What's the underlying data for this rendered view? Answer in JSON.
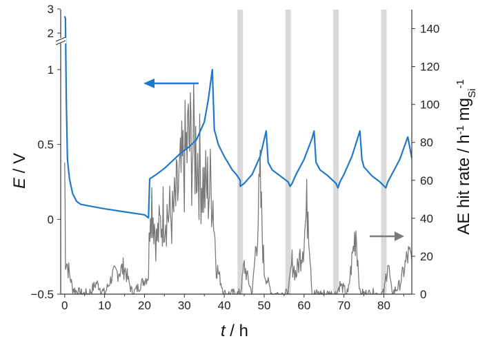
{
  "chart_data": {
    "type": "line",
    "x_axis": {
      "label_var": "t",
      "label_unit": "h",
      "ticks": [
        "0",
        "10",
        "20",
        "30",
        "40",
        "50",
        "60",
        "70",
        "80"
      ],
      "range": [
        -1,
        87
      ]
    },
    "y_left": {
      "label_var": "E",
      "label_unit": "V",
      "ticks": [
        "-0.5",
        "0",
        "0.5",
        "1",
        "2",
        "3"
      ],
      "range": [
        -0.5,
        3
      ],
      "axis_break": [
        1.2,
        1.8
      ]
    },
    "y_right": {
      "label": "AE hit rate / h",
      "label_exp1": "-1",
      "label_unit": " mg",
      "label_sub": "Si",
      "label_exp2": "-1",
      "ticks": [
        "0",
        "20",
        "40",
        "60",
        "80",
        "100",
        "120",
        "140"
      ],
      "range": [
        0,
        150
      ]
    },
    "shaded_bands_x": [
      44,
      56,
      68,
      80
    ],
    "series": [
      {
        "axis": "left",
        "color": "#1f78c8",
        "points": [
          [
            0,
            2.7
          ],
          [
            0.2,
            2.6
          ],
          [
            0.4,
            0.8
          ],
          [
            0.7,
            0.4
          ],
          [
            1.2,
            0.27
          ],
          [
            2,
            0.17
          ],
          [
            3,
            0.12
          ],
          [
            4,
            0.1
          ],
          [
            6,
            0.09
          ],
          [
            10,
            0.07
          ],
          [
            15,
            0.05
          ],
          [
            20,
            0.03
          ],
          [
            21,
            0.01
          ],
          [
            21.3,
            0.27
          ],
          [
            23,
            0.3
          ],
          [
            25,
            0.34
          ],
          [
            27,
            0.39
          ],
          [
            29,
            0.44
          ],
          [
            31,
            0.48
          ],
          [
            33,
            0.53
          ],
          [
            35,
            0.65
          ],
          [
            36,
            0.8
          ],
          [
            37,
            1.0
          ],
          [
            37.5,
            0.6
          ],
          [
            38.5,
            0.5
          ],
          [
            40,
            0.42
          ],
          [
            42,
            0.33
          ],
          [
            43,
            0.3
          ],
          [
            44,
            0.26
          ],
          [
            44,
            0.22
          ],
          [
            45,
            0.24
          ],
          [
            47,
            0.3
          ],
          [
            49,
            0.42
          ],
          [
            50.5,
            0.59
          ],
          [
            51,
            0.38
          ],
          [
            52,
            0.33
          ],
          [
            54,
            0.29
          ],
          [
            56,
            0.25
          ],
          [
            56.5,
            0.22
          ],
          [
            57,
            0.24
          ],
          [
            58,
            0.3
          ],
          [
            60,
            0.4
          ],
          [
            62,
            0.54
          ],
          [
            62.5,
            0.59
          ],
          [
            63,
            0.38
          ],
          [
            64,
            0.33
          ],
          [
            66,
            0.29
          ],
          [
            68,
            0.24
          ],
          [
            68.5,
            0.21
          ],
          [
            69,
            0.25
          ],
          [
            70,
            0.3
          ],
          [
            72,
            0.42
          ],
          [
            74,
            0.59
          ],
          [
            74.5,
            0.4
          ],
          [
            75,
            0.35
          ],
          [
            77,
            0.29
          ],
          [
            79,
            0.25
          ],
          [
            80.5,
            0.21
          ],
          [
            81,
            0.25
          ],
          [
            82,
            0.3
          ],
          [
            84,
            0.4
          ],
          [
            86,
            0.55
          ],
          [
            87,
            0.41
          ]
        ]
      },
      {
        "axis": "right",
        "color": "#7a7a7a",
        "values": [
          [
            0,
            70
          ],
          [
            0.2,
            20
          ],
          [
            2,
            3
          ],
          [
            4,
            0
          ],
          [
            6,
            0
          ],
          [
            8,
            6
          ],
          [
            10,
            0
          ],
          [
            12,
            10
          ],
          [
            15,
            14
          ],
          [
            17,
            0
          ],
          [
            19,
            5
          ],
          [
            21,
            10
          ],
          [
            21.5,
            57
          ],
          [
            23,
            28
          ],
          [
            25,
            45
          ],
          [
            27,
            40
          ],
          [
            29,
            60
          ],
          [
            31,
            80
          ],
          [
            33,
            76
          ],
          [
            35,
            55
          ],
          [
            37,
            57
          ],
          [
            38,
            15
          ],
          [
            40,
            0
          ],
          [
            42,
            0
          ],
          [
            44,
            0
          ],
          [
            45,
            15
          ],
          [
            47,
            0
          ],
          [
            49,
            55
          ],
          [
            50,
            12
          ],
          [
            52,
            0
          ],
          [
            54,
            0
          ],
          [
            56,
            0
          ],
          [
            57,
            17
          ],
          [
            58,
            10
          ],
          [
            60,
            30
          ],
          [
            61,
            50
          ],
          [
            62,
            0
          ],
          [
            64,
            0
          ],
          [
            66,
            0
          ],
          [
            68,
            0
          ],
          [
            69,
            5
          ],
          [
            71,
            0
          ],
          [
            73,
            35
          ],
          [
            74,
            0
          ],
          [
            76,
            0
          ],
          [
            78,
            0
          ],
          [
            80,
            0
          ],
          [
            81,
            18
          ],
          [
            82,
            0
          ],
          [
            84,
            5
          ],
          [
            86,
            20
          ],
          [
            87,
            18
          ]
        ]
      }
    ],
    "annotations": [
      {
        "type": "arrow",
        "direction": "left",
        "color": "#1f78c8"
      },
      {
        "type": "arrow",
        "direction": "right",
        "color": "#7a7a7a"
      }
    ]
  }
}
